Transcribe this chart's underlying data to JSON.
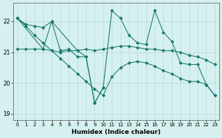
{
  "xlabel": "Humidex (Indice chaleur)",
  "line_color": "#1a7a6e",
  "bg_color": "#d6f0f0",
  "grid_color": "#b0dada",
  "xlim": [
    -0.5,
    23.5
  ],
  "ylim": [
    18.8,
    22.6
  ],
  "xticks": [
    0,
    1,
    2,
    3,
    4,
    5,
    6,
    7,
    8,
    9,
    10,
    11,
    12,
    13,
    14,
    15,
    16,
    17,
    18,
    19,
    20,
    21,
    22,
    23
  ],
  "yticks": [
    19,
    20,
    21,
    22
  ],
  "series": [
    {
      "x": [
        0,
        1,
        2,
        3,
        4,
        5,
        6,
        7,
        8,
        9,
        10,
        11,
        12,
        13,
        14,
        15,
        16,
        17,
        18,
        19,
        20,
        21,
        22,
        23
      ],
      "y": [
        22.1,
        21.85,
        21.55,
        21.3,
        21.05,
        20.8,
        20.55,
        20.3,
        20.05,
        19.8,
        19.6,
        20.2,
        20.5,
        20.65,
        20.7,
        20.65,
        20.55,
        20.4,
        20.3,
        20.15,
        20.05,
        20.05,
        19.95,
        19.6
      ]
    },
    {
      "x": [
        0,
        1,
        2,
        3,
        4,
        5,
        6,
        7,
        8,
        9,
        10,
        11,
        12,
        13,
        14,
        15,
        16,
        17,
        18,
        19,
        20,
        21,
        22,
        23
      ],
      "y": [
        21.1,
        21.1,
        21.1,
        21.1,
        21.05,
        21.0,
        21.05,
        21.05,
        21.1,
        21.05,
        21.1,
        21.15,
        21.2,
        21.2,
        21.15,
        21.1,
        21.1,
        21.05,
        21.05,
        21.0,
        20.9,
        20.85,
        20.75,
        20.6
      ]
    },
    {
      "x": [
        0,
        1,
        2,
        3,
        4,
        5,
        6,
        7,
        8,
        9,
        10,
        11,
        12,
        13,
        14,
        15,
        16,
        17,
        18,
        19,
        20,
        21,
        22,
        23
      ],
      "y": [
        22.1,
        21.9,
        21.85,
        21.8,
        22.0,
        21.05,
        21.1,
        20.85,
        20.85,
        19.35,
        19.85,
        22.35,
        22.1,
        21.55,
        21.3,
        21.25,
        22.35,
        21.65,
        21.35,
        20.65,
        20.6,
        20.6,
        19.95,
        19.6
      ]
    },
    {
      "x": [
        0,
        3,
        4,
        7,
        8,
        9,
        10
      ],
      "y": [
        22.1,
        21.1,
        22.0,
        21.05,
        20.85,
        19.35,
        19.85
      ]
    }
  ]
}
